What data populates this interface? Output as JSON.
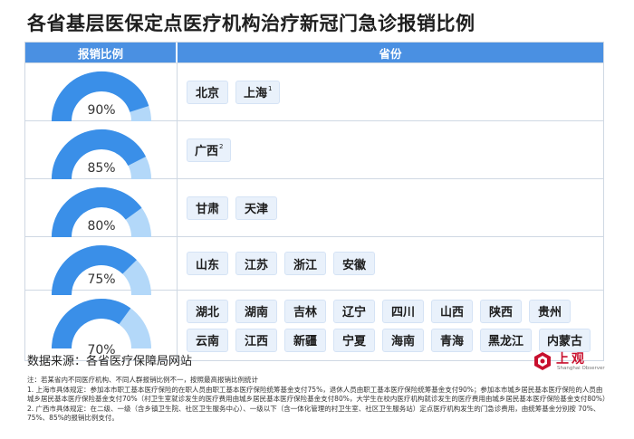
{
  "title": "各省基层医保定点医疗机构治疗新冠门急诊报销比例",
  "header": {
    "col_ratio": "报销比例",
    "col_province": "省份"
  },
  "colors": {
    "header_bg": "#4a90e2",
    "gauge_fill": "#3a8fe8",
    "gauge_track": "#b3d8f9",
    "chip_bg": "#e9f1fb"
  },
  "rows": [
    {
      "ratio": "90%",
      "value": 0.9,
      "provinces": [
        {
          "name": "北京",
          "sup": ""
        },
        {
          "name": "上海",
          "sup": "1"
        }
      ]
    },
    {
      "ratio": "85%",
      "value": 0.85,
      "provinces": [
        {
          "name": "广西",
          "sup": "2"
        }
      ]
    },
    {
      "ratio": "80%",
      "value": 0.8,
      "provinces": [
        {
          "name": "甘肃",
          "sup": ""
        },
        {
          "name": "天津",
          "sup": ""
        }
      ]
    },
    {
      "ratio": "75%",
      "value": 0.75,
      "provinces": [
        {
          "name": "山东",
          "sup": ""
        },
        {
          "name": "江苏",
          "sup": ""
        },
        {
          "name": "浙江",
          "sup": ""
        },
        {
          "name": "安徽",
          "sup": ""
        }
      ]
    },
    {
      "ratio": "70%",
      "value": 0.7,
      "provinces": [
        {
          "name": "湖北",
          "sup": ""
        },
        {
          "name": "湖南",
          "sup": ""
        },
        {
          "name": "吉林",
          "sup": ""
        },
        {
          "name": "辽宁",
          "sup": ""
        },
        {
          "name": "四川",
          "sup": ""
        },
        {
          "name": "山西",
          "sup": ""
        },
        {
          "name": "陕西",
          "sup": ""
        },
        {
          "name": "贵州",
          "sup": ""
        },
        {
          "name": "云南",
          "sup": ""
        },
        {
          "name": "江西",
          "sup": ""
        },
        {
          "name": "新疆",
          "sup": ""
        },
        {
          "name": "宁夏",
          "sup": ""
        },
        {
          "name": "海南",
          "sup": ""
        },
        {
          "name": "青海",
          "sup": ""
        },
        {
          "name": "黑龙江",
          "sup": ""
        },
        {
          "name": "内蒙古",
          "sup": ""
        }
      ]
    }
  ],
  "source": "数据来源：各省医疗保障局网站",
  "logo": {
    "name": "上观",
    "sub": "Shanghai Observer"
  },
  "notes": [
    "注：若某省内不同医疗机构、不同人群报销比例不一，按照最高报销比例统计",
    "1. 上海市具体规定：参加本市职工基本医疗保险的在职人员由职工基本医疗保险统筹基金支付75%，退休人员由职工基本医疗保险统筹基金支付90%；参加本市城乡居民基本医疗保险的人员由城乡居民基本医疗保险基金支付70%（村卫生室就诊发生的医疗费用由城乡居民基本医疗保险基金支付80%，大学生在校内医疗机构就诊发生的医疗费用由城乡居民基本医疗保险基金支付80%）",
    "2. 广西市具体规定：在二级、一级（含乡镇卫生院、社区卫生服务中心）、一级以下（含一体化管理的村卫生室、社区卫生服务站）定点医疗机构发生的门急诊费用，由统筹基金分别按 70%、75%、85%的报销比例支付。"
  ]
}
